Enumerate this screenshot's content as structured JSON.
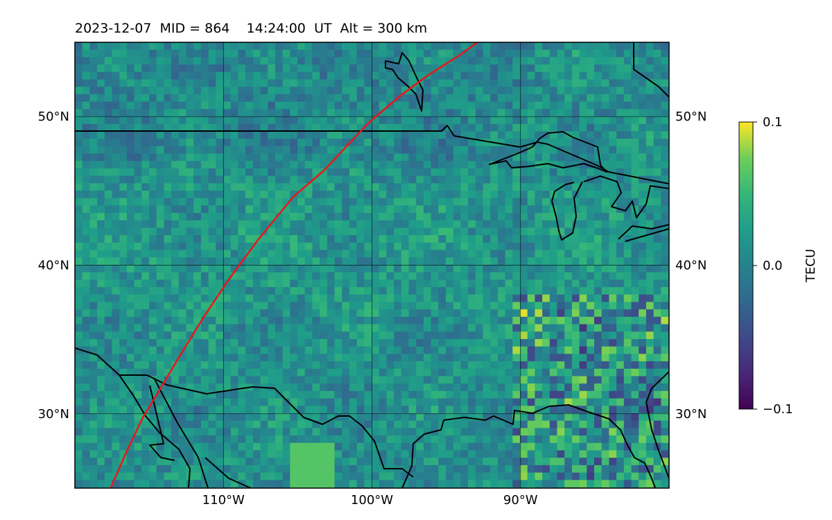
{
  "title": "2023-12-07  MID = 864    14:24:00  UT  Alt = 300 km",
  "map": {
    "projection": "equirectangular",
    "lon_range": [
      -120,
      -80
    ],
    "lat_range": [
      25,
      55
    ],
    "gridlines": true,
    "lat_ticks": [
      {
        "value": 50,
        "label": "50°N"
      },
      {
        "value": 40,
        "label": "40°N"
      },
      {
        "value": 30,
        "label": "30°N"
      }
    ],
    "lon_ticks": [
      {
        "value": -110,
        "label": "110°W"
      },
      {
        "value": -100,
        "label": "100°W"
      },
      {
        "value": -90,
        "label": "90°W"
      }
    ],
    "field_colormap": "viridis",
    "track_color": "#e41a1c",
    "coastline_color": "#000000",
    "track": [
      [
        -117.6,
        25
      ],
      [
        -116.5,
        27.5
      ],
      [
        -115.4,
        29.8
      ],
      [
        -114.3,
        31.6
      ],
      [
        -113,
        33.8
      ],
      [
        -111.4,
        36.4
      ],
      [
        -109.6,
        39.1
      ],
      [
        -107.6,
        41.8
      ],
      [
        -105.3,
        44.6
      ],
      [
        -103.2,
        46.4
      ],
      [
        -101.9,
        47.8
      ],
      [
        -100.2,
        49.6
      ],
      [
        -98.1,
        51.4
      ],
      [
        -96.2,
        52.8
      ],
      [
        -94,
        54.2
      ],
      [
        -92.9,
        55
      ]
    ]
  },
  "colorbar": {
    "label": "TECU",
    "min": -0.1,
    "max": 0.1,
    "ticks": [
      {
        "value": 0.1,
        "label": "0.1"
      },
      {
        "value": 0.0,
        "label": "0.0"
      },
      {
        "value": -0.1,
        "label": "−0.1"
      }
    ]
  }
}
